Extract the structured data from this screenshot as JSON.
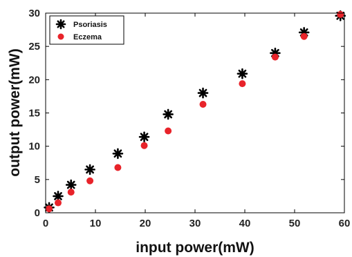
{
  "chart_data": {
    "type": "scatter",
    "xlabel": "input power(mW)",
    "ylabel": "output power(mW)",
    "xlim": [
      0,
      60
    ],
    "ylim": [
      0,
      30
    ],
    "xticks": [
      0,
      10,
      20,
      30,
      40,
      50,
      60
    ],
    "yticks": [
      0,
      5,
      10,
      15,
      20,
      25,
      30
    ],
    "grid": false,
    "legend_position": "top-left",
    "series": [
      {
        "name": "Psoriasis",
        "color": "#000000",
        "marker": "asterisk",
        "x": [
          0.7,
          2.5,
          5.1,
          8.9,
          14.5,
          19.8,
          24.6,
          31.6,
          39.5,
          46.1,
          51.9,
          59.2
        ],
        "y": [
          0.8,
          2.5,
          4.2,
          6.5,
          8.9,
          11.4,
          14.8,
          18.0,
          20.9,
          24.0,
          27.1,
          29.6
        ]
      },
      {
        "name": "Eczema",
        "color": "#e8232a",
        "marker": "circle",
        "x": [
          0.7,
          2.5,
          5.1,
          8.9,
          14.5,
          19.8,
          24.6,
          31.6,
          39.5,
          46.1,
          51.9,
          59.2
        ],
        "y": [
          0.6,
          1.5,
          3.1,
          4.8,
          6.8,
          10.1,
          12.3,
          16.3,
          19.4,
          23.4,
          26.5,
          29.8
        ]
      }
    ]
  }
}
